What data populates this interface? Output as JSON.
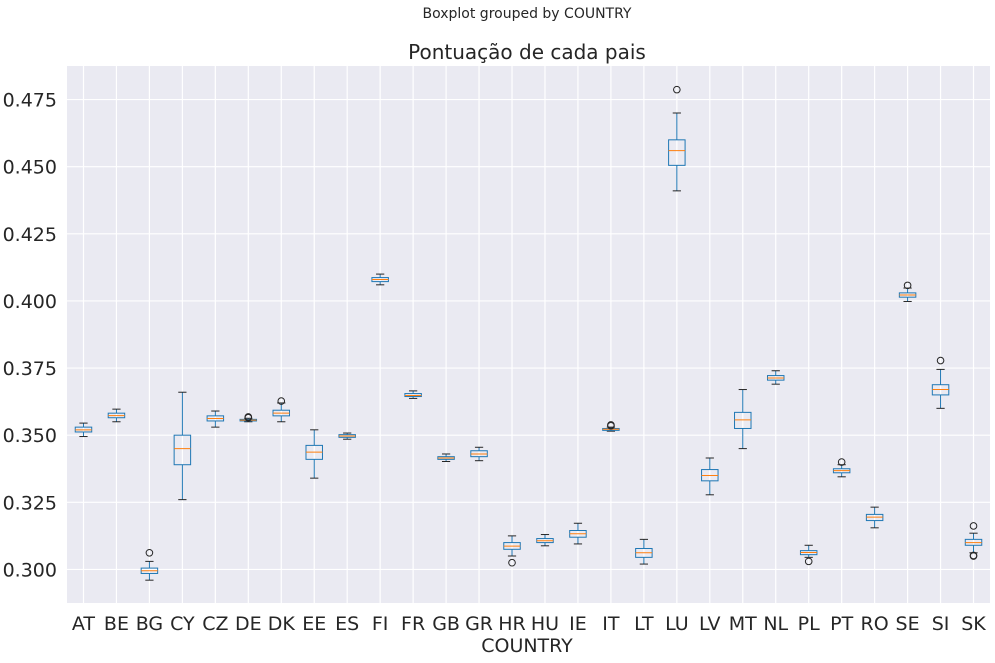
{
  "chart_data": {
    "type": "boxplot",
    "suptitle": "Boxplot grouped by COUNTRY",
    "title": "Pontuação de cada pais",
    "xlabel": "COUNTRY",
    "ylabel": "",
    "ylim": [
      0.2875,
      0.4875
    ],
    "yticks": [
      "0.300",
      "0.325",
      "0.350",
      "0.375",
      "0.400",
      "0.425",
      "0.450",
      "0.475"
    ],
    "grid": true,
    "colors": {
      "background": "#eaeaf2",
      "grid": "#ffffff",
      "box": "#1f77b4",
      "median": "#ff7f0e",
      "whisker": "#1f77b4",
      "cap": "#262626"
    },
    "categories": [
      "AT",
      "BE",
      "BG",
      "CY",
      "CZ",
      "DE",
      "DK",
      "EE",
      "ES",
      "FI",
      "FR",
      "GB",
      "GR",
      "HR",
      "HU",
      "IE",
      "IT",
      "LT",
      "LU",
      "LV",
      "MT",
      "NL",
      "PL",
      "PT",
      "RO",
      "SE",
      "SI",
      "SK"
    ],
    "boxes": [
      {
        "low": 0.3495,
        "q1": 0.3512,
        "median": 0.352,
        "q3": 0.353,
        "high": 0.3545,
        "outliers": []
      },
      {
        "low": 0.355,
        "q1": 0.3565,
        "median": 0.3573,
        "q3": 0.3582,
        "high": 0.3597,
        "outliers": []
      },
      {
        "low": 0.296,
        "q1": 0.2985,
        "median": 0.2995,
        "q3": 0.3005,
        "high": 0.303,
        "outliers": [
          0.3062
        ]
      },
      {
        "low": 0.326,
        "q1": 0.339,
        "median": 0.345,
        "q3": 0.35,
        "high": 0.366,
        "outliers": []
      },
      {
        "low": 0.353,
        "q1": 0.3553,
        "median": 0.3562,
        "q3": 0.3572,
        "high": 0.359,
        "outliers": []
      },
      {
        "low": 0.355,
        "q1": 0.3553,
        "median": 0.3556,
        "q3": 0.3559,
        "high": 0.3563,
        "outliers": [
          0.3565,
          0.3568
        ]
      },
      {
        "low": 0.355,
        "q1": 0.3572,
        "median": 0.3582,
        "q3": 0.3593,
        "high": 0.362,
        "outliers": [
          0.3627
        ]
      },
      {
        "low": 0.334,
        "q1": 0.341,
        "median": 0.3437,
        "q3": 0.3462,
        "high": 0.352,
        "outliers": []
      },
      {
        "low": 0.3485,
        "q1": 0.3492,
        "median": 0.3497,
        "q3": 0.3502,
        "high": 0.3508,
        "outliers": []
      },
      {
        "low": 0.406,
        "q1": 0.4072,
        "median": 0.408,
        "q3": 0.4087,
        "high": 0.41,
        "outliers": []
      },
      {
        "low": 0.3637,
        "q1": 0.3644,
        "median": 0.3648,
        "q3": 0.3655,
        "high": 0.3665,
        "outliers": []
      },
      {
        "low": 0.3402,
        "q1": 0.341,
        "median": 0.3415,
        "q3": 0.342,
        "high": 0.343,
        "outliers": []
      },
      {
        "low": 0.3405,
        "q1": 0.342,
        "median": 0.343,
        "q3": 0.3442,
        "high": 0.3455,
        "outliers": []
      },
      {
        "low": 0.305,
        "q1": 0.3075,
        "median": 0.3087,
        "q3": 0.31,
        "high": 0.3125,
        "outliers": [
          0.3025
        ]
      },
      {
        "low": 0.3088,
        "q1": 0.31,
        "median": 0.3107,
        "q3": 0.3115,
        "high": 0.313,
        "outliers": []
      },
      {
        "low": 0.3095,
        "q1": 0.312,
        "median": 0.3133,
        "q3": 0.3145,
        "high": 0.3172,
        "outliers": []
      },
      {
        "low": 0.3515,
        "q1": 0.3518,
        "median": 0.3522,
        "q3": 0.3525,
        "high": 0.353,
        "outliers": [
          0.3535,
          0.3538
        ]
      },
      {
        "low": 0.302,
        "q1": 0.3045,
        "median": 0.3062,
        "q3": 0.3078,
        "high": 0.3112,
        "outliers": []
      },
      {
        "low": 0.441,
        "q1": 0.4505,
        "median": 0.456,
        "q3": 0.46,
        "high": 0.47,
        "outliers": [
          0.4787
        ]
      },
      {
        "low": 0.3278,
        "q1": 0.333,
        "median": 0.335,
        "q3": 0.3372,
        "high": 0.3415,
        "outliers": []
      },
      {
        "low": 0.345,
        "q1": 0.3525,
        "median": 0.3557,
        "q3": 0.3585,
        "high": 0.367,
        "outliers": []
      },
      {
        "low": 0.369,
        "q1": 0.3705,
        "median": 0.3713,
        "q3": 0.3722,
        "high": 0.374,
        "outliers": []
      },
      {
        "low": 0.3045,
        "q1": 0.3055,
        "median": 0.3063,
        "q3": 0.307,
        "high": 0.309,
        "outliers": [
          0.303
        ]
      },
      {
        "low": 0.3345,
        "q1": 0.336,
        "median": 0.3368,
        "q3": 0.3375,
        "high": 0.339,
        "outliers": [
          0.34
        ]
      },
      {
        "low": 0.3155,
        "q1": 0.3182,
        "median": 0.3195,
        "q3": 0.3205,
        "high": 0.3232,
        "outliers": []
      },
      {
        "low": 0.3998,
        "q1": 0.4014,
        "median": 0.4022,
        "q3": 0.403,
        "high": 0.4048,
        "outliers": [
          0.4058
        ]
      },
      {
        "low": 0.36,
        "q1": 0.365,
        "median": 0.367,
        "q3": 0.3688,
        "high": 0.3745,
        "outliers": [
          0.3778
        ]
      },
      {
        "low": 0.3062,
        "q1": 0.309,
        "median": 0.31,
        "q3": 0.3112,
        "high": 0.3135,
        "outliers": [
          0.3052,
          0.305,
          0.3162
        ]
      }
    ]
  }
}
